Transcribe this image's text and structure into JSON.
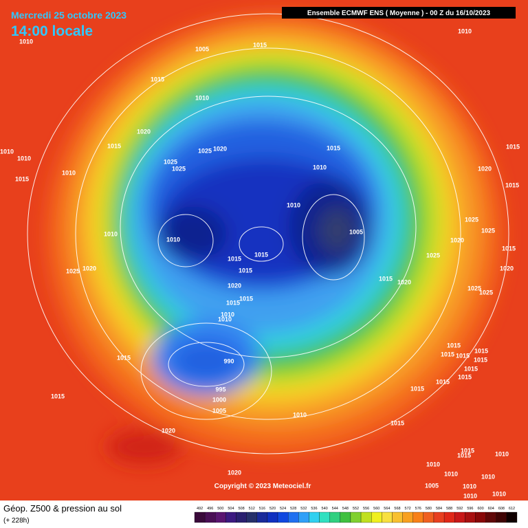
{
  "header": {
    "date": "Mercredi 25 octobre 2023",
    "time": "14:00 locale",
    "model": "Ensemble ECMWF ENS  ( Moyenne )  -  00 Z du 16/10/2023"
  },
  "copyright": "Copyright © 2023 Meteociel.fr",
  "footer": {
    "title": "Géop. Z500 & pression au sol",
    "lead": "(+ 228h)"
  },
  "isobar_labels": [
    "1010",
    "1005",
    "1015",
    "1010",
    "1015",
    "1010",
    "1020",
    "1015",
    "1025",
    "1020",
    "1015",
    "1010",
    "1010",
    "1025",
    "1025",
    "1010",
    "1015",
    "1020",
    "1010",
    "1015",
    "1015",
    "1010",
    "1025",
    "1025",
    "1010",
    "1005",
    "1020",
    "1010",
    "1015",
    "1015",
    "1015",
    "1015",
    "1025",
    "1020",
    "1025",
    "1020",
    "1015",
    "1020",
    "1020",
    "1015",
    "1015",
    "1010",
    "1010",
    "1025",
    "1025",
    "1015",
    "990",
    "1015",
    "1015",
    "1015",
    "1015",
    "1015",
    "1015",
    "1015",
    "1015",
    "1015",
    "995",
    "1015",
    "1000",
    "1005",
    "1010",
    "1015",
    "1020",
    "1015",
    "1015",
    "1010",
    "1010",
    "1010",
    "1010",
    "1020",
    "1005",
    "1010",
    "1010",
    "1010"
  ],
  "scale": [
    {
      "label": "492",
      "color": "#3a0a3a"
    },
    {
      "label": "496",
      "color": "#4a0f55"
    },
    {
      "label": "500",
      "color": "#5a1570"
    },
    {
      "label": "504",
      "color": "#3c1a80"
    },
    {
      "label": "508",
      "color": "#2a2070"
    },
    {
      "label": "512",
      "color": "#26306a"
    },
    {
      "label": "516",
      "color": "#1a2a9a"
    },
    {
      "label": "520",
      "color": "#1030c0"
    },
    {
      "label": "524",
      "color": "#1048e0"
    },
    {
      "label": "528",
      "color": "#2070f0"
    },
    {
      "label": "532",
      "color": "#30a0f8"
    },
    {
      "label": "536",
      "color": "#30d0f0"
    },
    {
      "label": "540",
      "color": "#30e0c0"
    },
    {
      "label": "544",
      "color": "#30d080"
    },
    {
      "label": "548",
      "color": "#40c040"
    },
    {
      "label": "552",
      "color": "#80d030"
    },
    {
      "label": "556",
      "color": "#c0e020"
    },
    {
      "label": "560",
      "color": "#f0f020"
    },
    {
      "label": "564",
      "color": "#f8e040"
    },
    {
      "label": "568",
      "color": "#f8c030"
    },
    {
      "label": "572",
      "color": "#f8a020"
    },
    {
      "label": "576",
      "color": "#f88018"
    },
    {
      "label": "580",
      "color": "#f06020"
    },
    {
      "label": "584",
      "color": "#e84020"
    },
    {
      "label": "588",
      "color": "#e02818"
    },
    {
      "label": "592",
      "color": "#c81818"
    },
    {
      "label": "596",
      "color": "#a81010"
    },
    {
      "label": "600",
      "color": "#880808"
    },
    {
      "label": "604",
      "color": "#600808"
    },
    {
      "label": "608",
      "color": "#400404"
    },
    {
      "label": "612",
      "color": "#100000"
    }
  ]
}
